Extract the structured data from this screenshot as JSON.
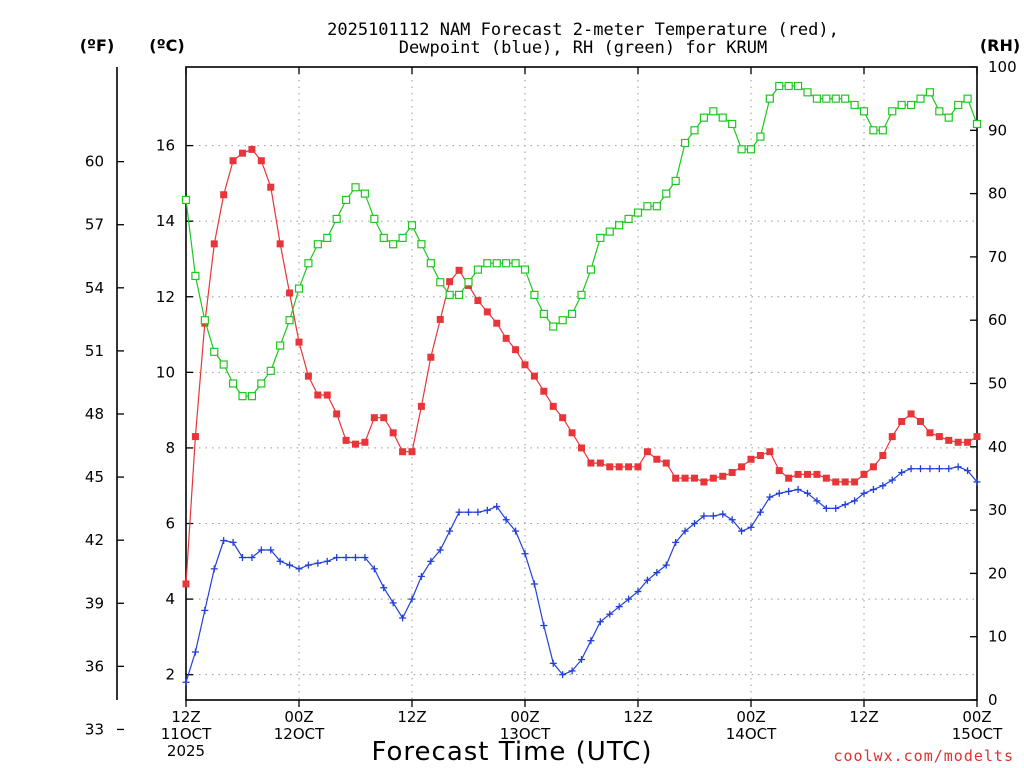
{
  "title_line1": "2025101112 NAM Forecast 2-meter Temperature (red),",
  "title_line2": "Dewpoint (blue), RH (green) for KRUM",
  "unit_f": "(ºF)",
  "unit_c": "(ºC)",
  "unit_rh": "(RH)",
  "xlabel": "Forecast Time (UTC)",
  "credit": "coolwx.com/modelts",
  "colors": {
    "temp": "#e8353a",
    "dewpoint": "#2240d8",
    "rh": "#1ec81e",
    "grid": "#999999"
  },
  "chart_data": {
    "type": "line",
    "x_unit": "forecast hour (step 1 h, starting 2025-10-11 12Z)",
    "x": [
      0,
      1,
      2,
      3,
      4,
      5,
      6,
      7,
      8,
      9,
      10,
      11,
      12,
      13,
      14,
      15,
      16,
      17,
      18,
      19,
      20,
      21,
      22,
      23,
      24,
      25,
      26,
      27,
      28,
      29,
      30,
      31,
      32,
      33,
      34,
      35,
      36,
      37,
      38,
      39,
      40,
      41,
      42,
      43,
      44,
      45,
      46,
      47,
      48,
      49,
      50,
      51,
      52,
      53,
      54,
      55,
      56,
      57,
      58,
      59,
      60,
      61,
      62,
      63,
      64,
      65,
      66,
      67,
      68,
      69,
      70,
      71,
      72,
      73,
      74,
      75,
      76,
      77,
      78,
      79,
      80,
      81,
      82,
      83,
      84
    ],
    "xlim": [
      0,
      84
    ],
    "x_ticks": [
      {
        "x": 0,
        "labels": [
          "12Z",
          "11OCT",
          "2025"
        ]
      },
      {
        "x": 12,
        "labels": [
          "00Z",
          "12OCT"
        ]
      },
      {
        "x": 24,
        "labels": [
          "12Z"
        ]
      },
      {
        "x": 36,
        "labels": [
          "00Z",
          "13OCT"
        ]
      },
      {
        "x": 48,
        "labels": [
          "12Z"
        ]
      },
      {
        "x": 60,
        "labels": [
          "00Z",
          "14OCT"
        ]
      },
      {
        "x": 72,
        "labels": [
          "12Z"
        ]
      },
      {
        "x": 84,
        "labels": [
          "00Z",
          "15OCT"
        ]
      }
    ],
    "axes": {
      "celsius": {
        "ylim": [
          1.33,
          18.08
        ],
        "ticks": [
          2,
          4,
          6,
          8,
          10,
          12,
          14,
          16
        ]
      },
      "fahrenheit": {
        "ylim": [
          34.4,
          64.5
        ],
        "ticks": [
          33,
          36,
          39,
          42,
          45,
          48,
          51,
          54,
          57,
          60
        ]
      },
      "rh": {
        "ylim": [
          0,
          100
        ],
        "ticks": [
          0,
          10,
          20,
          30,
          40,
          50,
          60,
          70,
          80,
          90,
          100
        ]
      }
    },
    "grid": true,
    "series": [
      {
        "key": "temp",
        "axis": "celsius",
        "marker": "filled-square",
        "values": [
          4.4,
          8.3,
          11.3,
          13.4,
          14.7,
          15.6,
          15.8,
          15.9,
          15.6,
          14.9,
          13.4,
          12.1,
          10.8,
          9.9,
          9.4,
          9.4,
          8.9,
          8.2,
          8.1,
          8.15,
          8.8,
          8.8,
          8.4,
          7.9,
          7.9,
          9.1,
          10.4,
          11.4,
          12.4,
          12.7,
          12.3,
          11.9,
          11.6,
          11.3,
          10.9,
          10.6,
          10.2,
          9.9,
          9.5,
          9.1,
          8.8,
          8.4,
          8.0,
          7.6,
          7.6,
          7.5,
          7.5,
          7.5,
          7.5,
          7.9,
          7.7,
          7.6,
          7.2,
          7.2,
          7.2,
          7.1,
          7.2,
          7.25,
          7.35,
          7.5,
          7.7,
          7.8,
          7.9,
          7.4,
          7.2,
          7.3,
          7.3,
          7.3,
          7.2,
          7.1,
          7.1,
          7.1,
          7.3,
          7.5,
          7.8,
          8.3,
          8.7,
          8.9,
          8.7,
          8.4,
          8.3,
          8.2,
          8.15,
          8.15,
          8.3
        ]
      },
      {
        "key": "dewpoint",
        "axis": "celsius",
        "marker": "plus",
        "values": [
          1.8,
          2.6,
          3.7,
          4.8,
          5.55,
          5.5,
          5.1,
          5.1,
          5.3,
          5.3,
          5.0,
          4.9,
          4.8,
          4.9,
          4.95,
          5.0,
          5.1,
          5.1,
          5.1,
          5.1,
          4.8,
          4.3,
          3.9,
          3.5,
          4.0,
          4.6,
          5.0,
          5.3,
          5.8,
          6.3,
          6.3,
          6.3,
          6.35,
          6.45,
          6.1,
          5.8,
          5.2,
          4.4,
          3.3,
          2.3,
          2.0,
          2.1,
          2.4,
          2.9,
          3.4,
          3.6,
          3.8,
          4.0,
          4.2,
          4.5,
          4.7,
          4.9,
          5.5,
          5.8,
          6.0,
          6.2,
          6.2,
          6.25,
          6.1,
          5.8,
          5.9,
          6.3,
          6.7,
          6.8,
          6.85,
          6.9,
          6.8,
          6.6,
          6.4,
          6.4,
          6.5,
          6.6,
          6.8,
          6.9,
          7.0,
          7.15,
          7.35,
          7.45,
          7.45,
          7.45,
          7.45,
          7.45,
          7.5,
          7.4,
          7.1
        ]
      },
      {
        "key": "rh",
        "axis": "rh",
        "marker": "open-square",
        "values": [
          79,
          67,
          60,
          55,
          53,
          50,
          48,
          48,
          50,
          52,
          56,
          60,
          65,
          69,
          72,
          73,
          76,
          79,
          81,
          80,
          76,
          73,
          72,
          73,
          75,
          72,
          69,
          66,
          64,
          64,
          66,
          68,
          69,
          69,
          69,
          69,
          68,
          64,
          61,
          59,
          60,
          61,
          64,
          68,
          73,
          74,
          75,
          76,
          77,
          78,
          78,
          80,
          82,
          88,
          90,
          92,
          93,
          92,
          91,
          87,
          87,
          89,
          95,
          97,
          97,
          97,
          96,
          95,
          95,
          95,
          95,
          94,
          93,
          90,
          90,
          93,
          94,
          94,
          95,
          96,
          93,
          92,
          94,
          95,
          91
        ]
      }
    ]
  }
}
